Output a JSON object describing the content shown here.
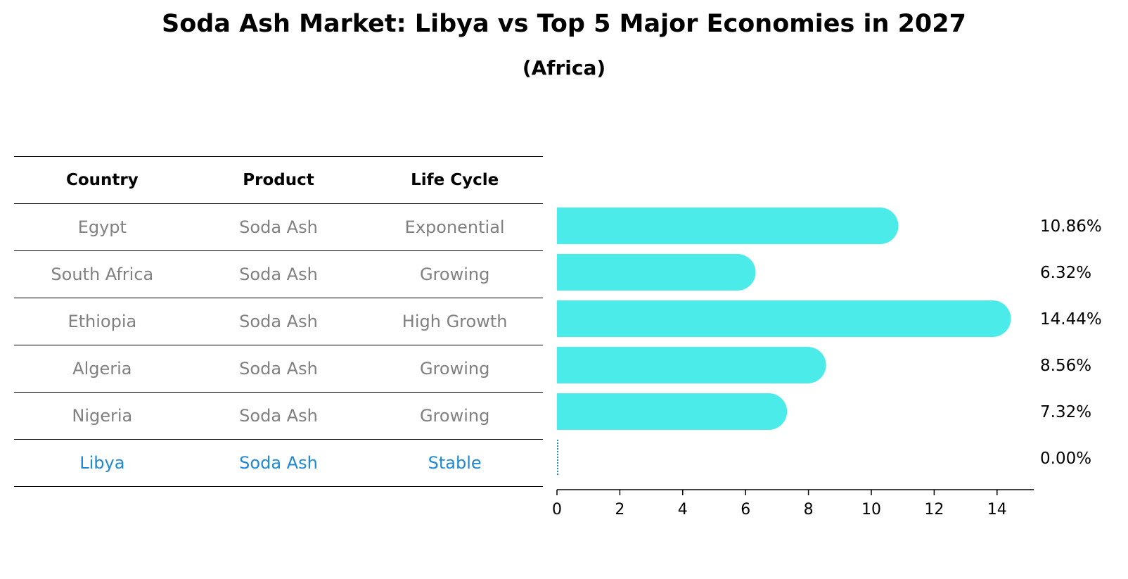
{
  "title": "Soda Ash Market: Libya vs Top 5 Major Economies in 2027",
  "subtitle": "(Africa)",
  "table": {
    "headers": [
      "Country",
      "Product",
      "Life Cycle"
    ],
    "rows": [
      [
        "Egypt",
        "Soda Ash",
        "Exponential"
      ],
      [
        "South Africa",
        "Soda Ash",
        "Growing"
      ],
      [
        "Ethiopia",
        "Soda Ash",
        "High Growth"
      ],
      [
        "Algeria",
        "Soda Ash",
        "Growing"
      ],
      [
        "Nigeria",
        "Soda Ash",
        "Growing"
      ],
      [
        "Libya",
        "Soda Ash",
        "Stable"
      ]
    ],
    "highlight_row": 5
  },
  "colors": {
    "bar": "#4bebea",
    "highlight": "#1f88d4",
    "muted_text": "#808080"
  },
  "chart_data": {
    "type": "bar",
    "orientation": "horizontal",
    "categories": [
      "Egypt",
      "South Africa",
      "Ethiopia",
      "Algeria",
      "Nigeria",
      "Libya"
    ],
    "values": [
      10.86,
      6.32,
      14.44,
      8.56,
      7.32,
      0.0
    ],
    "value_labels": [
      "10.86%",
      "6.32%",
      "14.44%",
      "8.56%",
      "7.32%",
      "0.00%"
    ],
    "xlim": [
      0,
      15.2
    ],
    "xticks": [
      0,
      2,
      4,
      6,
      8,
      10,
      12,
      14
    ],
    "xlabel": "",
    "ylabel": "",
    "grid": false
  }
}
